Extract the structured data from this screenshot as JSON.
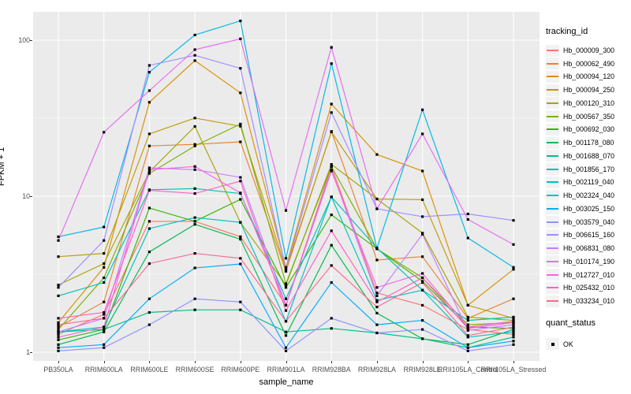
{
  "figure": {
    "y_axis_title": "FPKM + 1",
    "x_axis_title": "sample_name",
    "legend": {
      "tracking_title": "tracking_id",
      "quant_title": "quant_status",
      "quant_item": "OK"
    },
    "colors": {
      "panel_bg": "#EBEBEB",
      "grid_major": "#FFFFFF",
      "grid_minor": "#FFFFFF",
      "axis_text": "#4D4D4D",
      "tick_mark": "#333333",
      "legend_key_bg": "#F2F2F2",
      "point": "#000000"
    }
  },
  "chart_data": {
    "type": "line",
    "title": "",
    "xlabel": "sample_name",
    "ylabel": "FPKM + 1",
    "y_scale": "log10",
    "ylim": [
      0.9,
      150
    ],
    "y_ticks": [
      1,
      10,
      100
    ],
    "y_tick_labels": [
      "1",
      "10",
      "100"
    ],
    "y_minor_ticks": [
      3.162,
      31.62
    ],
    "grid": true,
    "legend_position": "right",
    "point_marker": "black-square",
    "point_legend": {
      "title": "quant_status",
      "items": [
        "OK"
      ]
    },
    "categories": [
      "PB350LA",
      "RRIM600LA",
      "RRIM600LE",
      "RRIM600SE",
      "RRIM600PE",
      "RRIM901LA",
      "RRIM928BA",
      "RRIM928LA",
      "RRIM928LE",
      "RRII105LA_Control",
      "RRII105LA_Stressed"
    ],
    "series": [
      {
        "name": "Hb_000009_300",
        "color": "#F8766D",
        "values": [
          1.3,
          1.75,
          6.9,
          6.9,
          5.5,
          2.0,
          15.5,
          2.4,
          2.0,
          1.4,
          1.3
        ]
      },
      {
        "name": "Hb_000062_490",
        "color": "#EA8331",
        "values": [
          1.45,
          2.1,
          21.0,
          21.5,
          22.3,
          3.3,
          26.0,
          3.9,
          4.1,
          1.65,
          2.2
        ]
      },
      {
        "name": "Hb_000094_120",
        "color": "#D89000",
        "values": [
          1.55,
          3.5,
          40.0,
          74.0,
          46.0,
          3.5,
          39.0,
          18.5,
          14.5,
          2.0,
          3.4
        ]
      },
      {
        "name": "Hb_000094_250",
        "color": "#C09B00",
        "values": [
          4.1,
          4.3,
          25.1,
          31.7,
          28.1,
          3.4,
          25.8,
          9.6,
          9.5,
          2.0,
          1.65
        ]
      },
      {
        "name": "Hb_000120_310",
        "color": "#A3A500",
        "values": [
          2.7,
          3.7,
          14.3,
          28.0,
          6.8,
          2.7,
          16.0,
          9.6,
          5.8,
          1.68,
          1.6
        ]
      },
      {
        "name": "Hb_000567_350",
        "color": "#7CAE00",
        "values": [
          1.4,
          3.0,
          14.0,
          21.0,
          29.0,
          2.75,
          15.5,
          4.6,
          3.0,
          1.5,
          1.55
        ]
      },
      {
        "name": "Hb_000692_030",
        "color": "#39B600",
        "values": [
          1.2,
          1.4,
          8.4,
          6.9,
          9.55,
          2.6,
          7.6,
          4.6,
          2.85,
          1.45,
          1.42
        ]
      },
      {
        "name": "Hb_001178_080",
        "color": "#00BB4E",
        "values": [
          1.12,
          1.35,
          4.4,
          6.6,
          5.3,
          1.28,
          4.85,
          1.78,
          1.22,
          1.12,
          1.4
        ]
      },
      {
        "name": "Hb_001688_070",
        "color": "#00C087",
        "values": [
          1.35,
          1.4,
          1.8,
          1.87,
          1.87,
          1.35,
          1.42,
          1.33,
          1.22,
          1.07,
          1.25
        ]
      },
      {
        "name": "Hb_001856_170",
        "color": "#00C0B2",
        "values": [
          2.3,
          2.8,
          11.0,
          11.2,
          10.4,
          2.2,
          9.9,
          4.65,
          2.5,
          1.6,
          1.68
        ]
      },
      {
        "name": "Hb_002119_040",
        "color": "#00BFC4",
        "values": [
          1.35,
          1.45,
          6.2,
          7.3,
          6.8,
          1.58,
          9.9,
          2.15,
          2.5,
          1.25,
          1.35
        ]
      },
      {
        "name": "Hb_002324_040",
        "color": "#00B8E5",
        "values": [
          5.5,
          6.35,
          62.4,
          108.0,
          133.0,
          4.0,
          70.8,
          4.65,
          35.8,
          5.4,
          3.5
        ]
      },
      {
        "name": "Hb_003025_150",
        "color": "#00ACFC",
        "values": [
          1.07,
          1.12,
          2.2,
          3.47,
          3.68,
          1.07,
          2.8,
          1.5,
          1.6,
          1.07,
          1.18
        ]
      },
      {
        "name": "Hb_003579_040",
        "color": "#8B93FF",
        "values": [
          1.02,
          1.07,
          1.5,
          2.2,
          2.1,
          1.02,
          1.65,
          1.33,
          1.4,
          1.02,
          1.12
        ]
      },
      {
        "name": "Hb_006615_160",
        "color": "#9F8CFF",
        "values": [
          2.6,
          5.2,
          68.9,
          80.0,
          66.0,
          3.4,
          34.4,
          8.3,
          7.4,
          7.7,
          7.0
        ]
      },
      {
        "name": "Hb_006831_080",
        "color": "#C77CFF",
        "values": [
          1.35,
          1.65,
          15.2,
          14.8,
          13.2,
          2.0,
          14.8,
          2.3,
          5.7,
          1.38,
          1.5
        ]
      },
      {
        "name": "Hb_010174_190",
        "color": "#E76BF3",
        "values": [
          5.2,
          25.7,
          47.5,
          87.0,
          102.0,
          8.1,
          90.0,
          8.3,
          25.1,
          7.1,
          4.9
        ]
      },
      {
        "name": "Hb_012727_010",
        "color": "#F564E3",
        "values": [
          1.25,
          1.45,
          14.8,
          15.5,
          10.5,
          2.0,
          14.5,
          2.6,
          3.2,
          1.45,
          1.58
        ]
      },
      {
        "name": "Hb_025432_010",
        "color": "#FF61C3",
        "values": [
          1.65,
          1.8,
          10.9,
          10.4,
          12.5,
          1.85,
          6.0,
          2.1,
          3.0,
          1.42,
          1.55
        ]
      },
      {
        "name": "Hb_033234_010",
        "color": "#FF6692",
        "values": [
          1.5,
          1.65,
          3.7,
          4.3,
          4.0,
          1.58,
          3.6,
          1.95,
          2.8,
          1.28,
          1.45
        ]
      }
    ]
  }
}
